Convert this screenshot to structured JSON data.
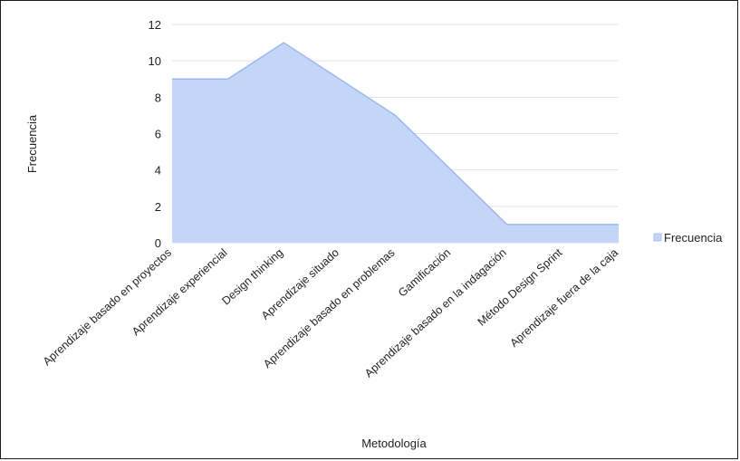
{
  "chart_data": {
    "type": "area",
    "categories": [
      "Aprendizaje basado en proyectos",
      "Aprendizaje experiencial",
      "Design thinking",
      "Aprendizaje situado",
      "Aprendizaje basado en problemas",
      "Gamificación",
      "Aprendizaje basado en la indagación",
      "Método Design Sprint",
      "Aprendizaje fuera de la caja"
    ],
    "series": [
      {
        "name": "Frecuencia",
        "values": [
          9,
          9,
          11,
          9,
          7,
          4,
          1,
          1,
          1
        ]
      }
    ],
    "xlabel": "Metodología",
    "ylabel": "Frecuencia",
    "ylim": [
      0,
      12
    ],
    "yticks": [
      0,
      2,
      4,
      6,
      8,
      10,
      12
    ],
    "grid": true,
    "legend": "right",
    "colors": {
      "fill": "#c4d6f7",
      "stroke": "#9ab7ee",
      "grid": "#e3e3e3",
      "legend_swatch": "#c4d6f7"
    }
  }
}
